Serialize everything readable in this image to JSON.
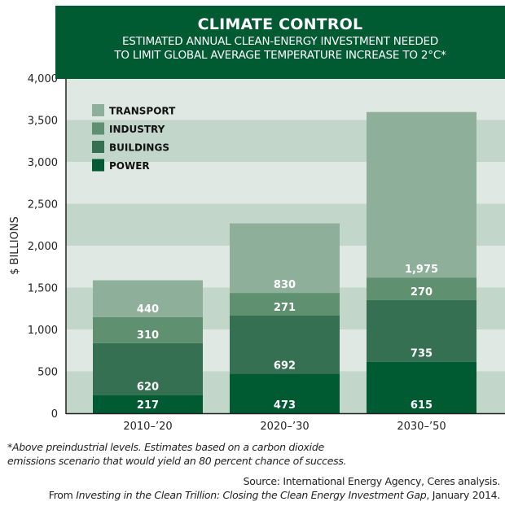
{
  "chart_data": {
    "type": "bar",
    "stacked": true,
    "title": "CLIMATE CONTROL",
    "subtitle_lines": [
      "ESTIMATED ANNUAL CLEAN-ENERGY INVESTMENT NEEDED",
      "TO LIMIT GLOBAL AVERAGE TEMPERATURE INCREASE TO 2°C*"
    ],
    "xlabel": "",
    "ylabel": "$ BILLIONS",
    "ylim": [
      0,
      4000
    ],
    "yticks": [
      0,
      500,
      1000,
      1500,
      2000,
      2500,
      3000,
      3500,
      4000
    ],
    "ytick_labels": [
      "0",
      "500",
      "1,000",
      "1,500",
      "2,000",
      "2,500",
      "3,000",
      "3,500",
      "4,000"
    ],
    "categories": [
      "2010–’20",
      "2020–’30",
      "2030–’50"
    ],
    "series": [
      {
        "name": "POWER",
        "values": [
          217,
          473,
          615
        ],
        "labels": [
          "217",
          "473",
          "615"
        ],
        "color": "#005a32"
      },
      {
        "name": "BUILDINGS",
        "values": [
          620,
          692,
          735
        ],
        "labels": [
          "620",
          "692",
          "735"
        ],
        "color": "#357052"
      },
      {
        "name": "INDUSTRY",
        "values": [
          310,
          271,
          270
        ],
        "labels": [
          "310",
          "271",
          "270"
        ],
        "color": "#5f906f"
      },
      {
        "name": "TRANSPORT",
        "values": [
          440,
          830,
          1975
        ],
        "labels": [
          "440",
          "830",
          "1,975"
        ],
        "color": "#8eb09b"
      }
    ],
    "legend_order": [
      "TRANSPORT",
      "INDUSTRY",
      "BUILDINGS",
      "POWER"
    ],
    "legend_placement": "top-left",
    "grid": "alternating horizontal bands",
    "band_colors": [
      "#c2d6ca",
      "#dfe8e3"
    ]
  },
  "header": {
    "title": "CLIMATE CONTROL",
    "subtitle_line1": "ESTIMATED ANNUAL CLEAN-ENERGY INVESTMENT NEEDED",
    "subtitle_line2": "TO LIMIT GLOBAL AVERAGE TEMPERATURE INCREASE TO 2°C*"
  },
  "footnote": {
    "line1": "*Above preindustrial levels. Estimates based on a carbon dioxide",
    "line2": "emissions scenario that would yield an 80 percent chance of success."
  },
  "source": {
    "line1": "Source: International Energy Agency, Ceres analysis.",
    "line2_prefix": "From ",
    "line2_title": "Investing in the Clean Trillion: Closing the Clean Energy Investment Gap",
    "line2_suffix": ", January 2014."
  },
  "colors": {
    "brand_green": "#005a32"
  }
}
